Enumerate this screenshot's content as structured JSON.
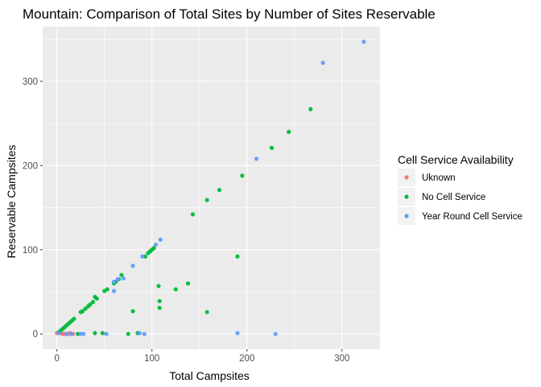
{
  "chart_data": {
    "type": "scatter",
    "title": "Mountain: Comparison of Total Sites by Number of Sites Reservable",
    "xlabel": "Total Campsites",
    "ylabel": "Reservable Campsites",
    "xlim": [
      -15,
      340
    ],
    "ylim": [
      -18,
      365
    ],
    "x_ticks": [
      0,
      100,
      200,
      300
    ],
    "y_ticks": [
      0,
      100,
      200,
      300
    ],
    "grid": true,
    "legend": {
      "title": "Cell Service Availability",
      "placement": "right"
    },
    "series": [
      {
        "name": "Uknown",
        "color": "#F8766D",
        "points": [
          [
            0,
            1
          ],
          [
            4,
            1
          ],
          [
            6,
            0
          ],
          [
            8,
            0
          ],
          [
            12,
            0
          ],
          [
            14,
            1
          ],
          [
            17,
            0
          ]
        ]
      },
      {
        "name": "No Cell Service",
        "color": "#00BA38",
        "points": [
          [
            2,
            2
          ],
          [
            4,
            4
          ],
          [
            6,
            6
          ],
          [
            8,
            8
          ],
          [
            10,
            10
          ],
          [
            12,
            12
          ],
          [
            14,
            14
          ],
          [
            16,
            16
          ],
          [
            18,
            18
          ],
          [
            22,
            0
          ],
          [
            25,
            26
          ],
          [
            27,
            27
          ],
          [
            30,
            30
          ],
          [
            33,
            33
          ],
          [
            35,
            35
          ],
          [
            38,
            38
          ],
          [
            40,
            44
          ],
          [
            42,
            42
          ],
          [
            40,
            1
          ],
          [
            48,
            1
          ],
          [
            50,
            51
          ],
          [
            53,
            53
          ],
          [
            60,
            60
          ],
          [
            62,
            62
          ],
          [
            65,
            65
          ],
          [
            68,
            70
          ],
          [
            75,
            0
          ],
          [
            80,
            27
          ],
          [
            85,
            1
          ],
          [
            93,
            92
          ],
          [
            96,
            96
          ],
          [
            98,
            98
          ],
          [
            100,
            100
          ],
          [
            102,
            102
          ],
          [
            107,
            57
          ],
          [
            108,
            39
          ],
          [
            108,
            31
          ],
          [
            125,
            53
          ],
          [
            138,
            60
          ],
          [
            143,
            142
          ],
          [
            158,
            26
          ],
          [
            158,
            159
          ],
          [
            171,
            171
          ],
          [
            190,
            92
          ],
          [
            195,
            188
          ],
          [
            226,
            221
          ],
          [
            244,
            240
          ],
          [
            267,
            267
          ]
        ]
      },
      {
        "name": "Year Round Cell Service",
        "color": "#619CFF",
        "points": [
          [
            2,
            1
          ],
          [
            10,
            0
          ],
          [
            15,
            0
          ],
          [
            25,
            0
          ],
          [
            28,
            0
          ],
          [
            52,
            0
          ],
          [
            60,
            51
          ],
          [
            60,
            62
          ],
          [
            64,
            65
          ],
          [
            70,
            66
          ],
          [
            80,
            81
          ],
          [
            87,
            1
          ],
          [
            90,
            92
          ],
          [
            92,
            0
          ],
          [
            104,
            106
          ],
          [
            109,
            112
          ],
          [
            190,
            1
          ],
          [
            210,
            208
          ],
          [
            230,
            0
          ],
          [
            280,
            322
          ],
          [
            323,
            347
          ]
        ]
      }
    ]
  }
}
